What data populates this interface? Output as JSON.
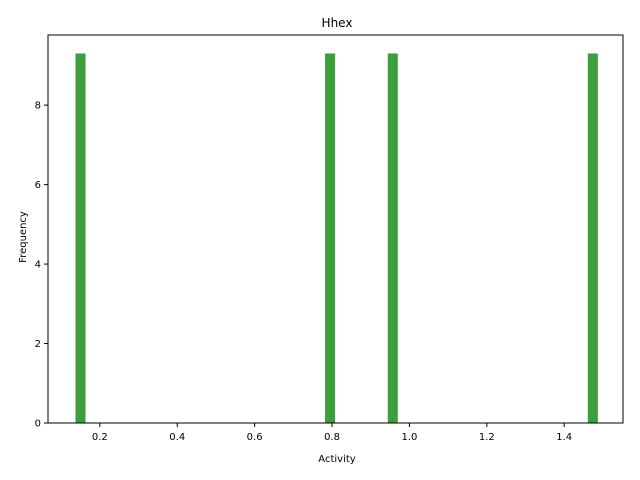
{
  "chart_data": {
    "type": "bar",
    "title": "Hhex",
    "xlabel": "Activity",
    "ylabel": "Frequency",
    "xlim": [
      0.066,
      1.552
    ],
    "ylim": [
      0,
      9.765
    ],
    "bar_color": "#3d9e3d",
    "bars": [
      {
        "x": 0.15,
        "value": 9.3
      },
      {
        "x": 0.795,
        "value": 9.3
      },
      {
        "x": 0.957,
        "value": 9.3
      },
      {
        "x": 1.474,
        "value": 9.3
      }
    ],
    "bar_width": 0.026,
    "xticks": [
      0.2,
      0.4,
      0.6,
      0.8,
      1.0,
      1.2,
      1.4
    ],
    "xtick_labels": [
      "0.2",
      "0.4",
      "0.6",
      "0.8",
      "1.0",
      "1.2",
      "1.4"
    ],
    "yticks": [
      0,
      2,
      4,
      6,
      8
    ],
    "ytick_labels": [
      "0",
      "2",
      "4",
      "6",
      "8"
    ]
  }
}
